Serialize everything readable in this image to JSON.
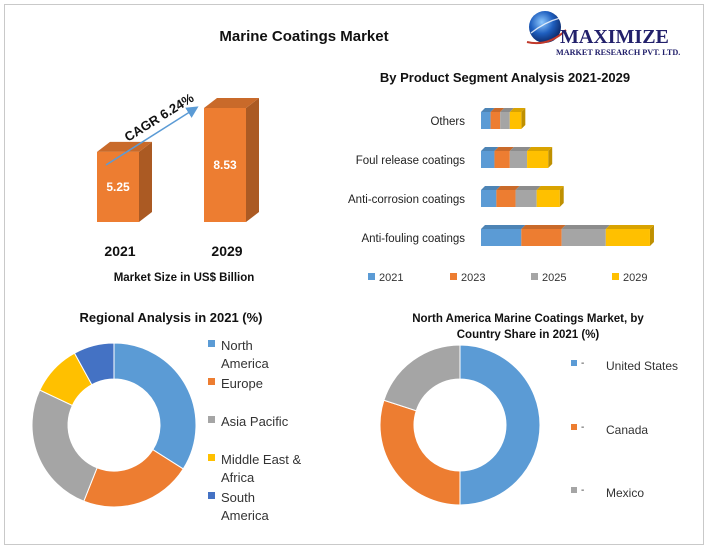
{
  "logo": {
    "name": "MAXIMIZE",
    "tagline": "MARKET RESEARCH PVT. LTD."
  },
  "colors": {
    "blue": "#5b9bd5",
    "orange": "#ed7d31",
    "gray": "#a5a5a5",
    "yellow": "#ffc000",
    "darkblue": "#4472c4"
  },
  "chart_data": [
    {
      "type": "bar",
      "title": "Marine Coatings Market",
      "categories": [
        "2021",
        "2029"
      ],
      "values": [
        5.25,
        8.53
      ],
      "value_labels": [
        "5.25",
        "8.53"
      ],
      "xlabel": "Market Size in US$ Billion",
      "annotation": "CAGR 6.24%",
      "ylim": [
        0,
        9
      ]
    },
    {
      "type": "bar",
      "orientation": "horizontal-stacked",
      "title": "By Product Segment Analysis 2021-2029",
      "categories": [
        "Others",
        "Foul release coatings",
        "Anti-corrosion coatings",
        "Anti-fouling coatings"
      ],
      "series": [
        {
          "name": "2021",
          "color": "#5b9bd5",
          "values": [
            0.5,
            0.7,
            0.8,
            2.1
          ]
        },
        {
          "name": "2023",
          "color": "#ed7d31",
          "values": [
            0.5,
            0.8,
            1.0,
            2.1
          ]
        },
        {
          "name": "2025",
          "color": "#a5a5a5",
          "values": [
            0.5,
            0.9,
            1.1,
            2.3
          ]
        },
        {
          "name": "2029",
          "color": "#ffc000",
          "values": [
            0.6,
            1.1,
            1.2,
            2.3
          ]
        }
      ],
      "legend": "bottom"
    },
    {
      "type": "pie",
      "style": "donut",
      "title": "Regional Analysis in 2021 (%)",
      "labels": [
        "North America",
        "Europe",
        "Asia Pacific",
        "Middle East & Africa",
        "South America"
      ],
      "legend_lines": [
        [
          "North",
          "America"
        ],
        [
          "Europe"
        ],
        [
          "Asia Pacific"
        ],
        [
          "Middle East &",
          "Africa"
        ],
        [
          "South",
          "America"
        ]
      ],
      "values": [
        34,
        22,
        26,
        10,
        8
      ],
      "colors": [
        "#5b9bd5",
        "#ed7d31",
        "#a5a5a5",
        "#ffc000",
        "#4472c4"
      ],
      "legend": "right"
    },
    {
      "type": "pie",
      "style": "donut",
      "title": "North America Marine Coatings Market, by Country Share in 2021 (%)",
      "title_lines": [
        "North America Marine Coatings Market, by",
        "Country Share in 2021 (%)"
      ],
      "labels": [
        "United States",
        "Canada",
        "Mexico"
      ],
      "values": [
        50,
        30,
        20
      ],
      "colors": [
        "#5b9bd5",
        "#ed7d31",
        "#a5a5a5"
      ],
      "legend_marker": "-",
      "legend": "right"
    }
  ]
}
